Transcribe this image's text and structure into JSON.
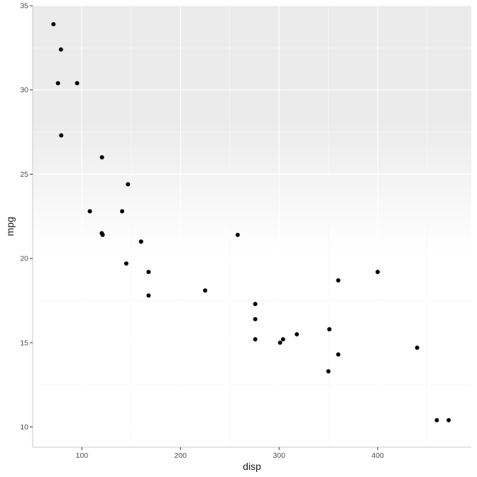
{
  "chart_data": {
    "type": "scatter",
    "xlabel": "disp",
    "ylabel": "mpg",
    "xlim": [
      50.0,
      495.0
    ],
    "ylim": [
      8.8,
      35.0
    ],
    "x_ticks": [
      100,
      200,
      300,
      400
    ],
    "y_ticks": [
      10,
      15,
      20,
      25,
      30,
      35
    ],
    "grid": true,
    "background": "gradient-grey-top-to-white-middle",
    "point_color": "#000000",
    "points": [
      {
        "x": 71.1,
        "y": 33.9
      },
      {
        "x": 78.7,
        "y": 32.4
      },
      {
        "x": 75.7,
        "y": 30.4
      },
      {
        "x": 95.1,
        "y": 30.4
      },
      {
        "x": 79.0,
        "y": 27.3
      },
      {
        "x": 120.3,
        "y": 26.0
      },
      {
        "x": 146.7,
        "y": 24.4
      },
      {
        "x": 108.0,
        "y": 22.8
      },
      {
        "x": 140.8,
        "y": 22.8
      },
      {
        "x": 120.1,
        "y": 21.5
      },
      {
        "x": 121.0,
        "y": 21.4
      },
      {
        "x": 258.0,
        "y": 21.4
      },
      {
        "x": 160.0,
        "y": 21.0
      },
      {
        "x": 160.0,
        "y": 21.0
      },
      {
        "x": 145.0,
        "y": 19.7
      },
      {
        "x": 167.6,
        "y": 19.2
      },
      {
        "x": 400.0,
        "y": 19.2
      },
      {
        "x": 360.0,
        "y": 18.7
      },
      {
        "x": 225.0,
        "y": 18.1
      },
      {
        "x": 167.6,
        "y": 17.8
      },
      {
        "x": 275.8,
        "y": 17.3
      },
      {
        "x": 275.8,
        "y": 16.4
      },
      {
        "x": 351.0,
        "y": 15.8
      },
      {
        "x": 318.0,
        "y": 15.5
      },
      {
        "x": 275.8,
        "y": 15.2
      },
      {
        "x": 304.0,
        "y": 15.2
      },
      {
        "x": 301.0,
        "y": 15.0
      },
      {
        "x": 440.0,
        "y": 14.7
      },
      {
        "x": 360.0,
        "y": 14.3
      },
      {
        "x": 350.0,
        "y": 13.3
      },
      {
        "x": 460.0,
        "y": 10.4
      },
      {
        "x": 472.0,
        "y": 10.4
      }
    ]
  }
}
